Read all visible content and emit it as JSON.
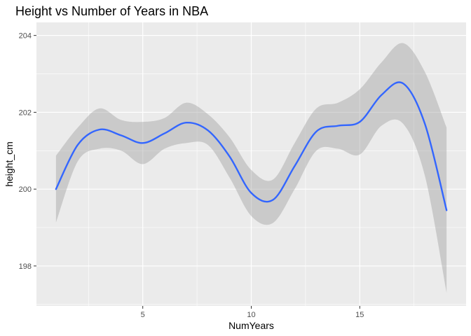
{
  "chart_data": {
    "type": "line",
    "title": "Height vs Number of Years in NBA",
    "xlabel": "NumYears",
    "ylabel": "height_cm",
    "xlim": [
      0.1,
      19.9
    ],
    "ylim": [
      196.96,
      204.34
    ],
    "x_ticks": [
      5,
      10,
      15
    ],
    "y_ticks": [
      198,
      200,
      202,
      204
    ],
    "x_tick_labels": [
      "5",
      "10",
      "15"
    ],
    "y_tick_labels": [
      "198",
      "200",
      "202",
      "204"
    ],
    "grid": true,
    "legend": "none",
    "colors": {
      "line": "#3366FF",
      "ribbon": "#999999",
      "panel": "#EBEBEB",
      "grid": "#FFFFFF"
    },
    "series": [
      {
        "x": [
          1,
          2,
          3,
          4,
          5,
          6,
          7,
          8,
          9,
          10,
          11,
          12,
          13,
          14,
          15,
          16,
          17,
          18,
          19
        ],
        "values": [
          200.0,
          201.15,
          201.55,
          201.4,
          201.2,
          201.45,
          201.73,
          201.53,
          200.85,
          199.9,
          199.72,
          200.6,
          201.5,
          201.65,
          201.75,
          202.45,
          202.75,
          201.7,
          199.45
        ],
        "ci_lower": [
          199.13,
          200.72,
          201.05,
          201.0,
          200.65,
          201.05,
          201.2,
          201.15,
          200.3,
          199.3,
          199.12,
          200.0,
          201.0,
          201.05,
          200.9,
          201.65,
          201.7,
          200.35,
          197.3
        ],
        "ci_upper": [
          200.87,
          201.6,
          202.1,
          201.8,
          201.75,
          201.85,
          202.25,
          201.95,
          201.35,
          200.5,
          200.25,
          201.2,
          202.1,
          202.25,
          202.6,
          203.3,
          203.8,
          203.05,
          201.6
        ]
      }
    ]
  }
}
